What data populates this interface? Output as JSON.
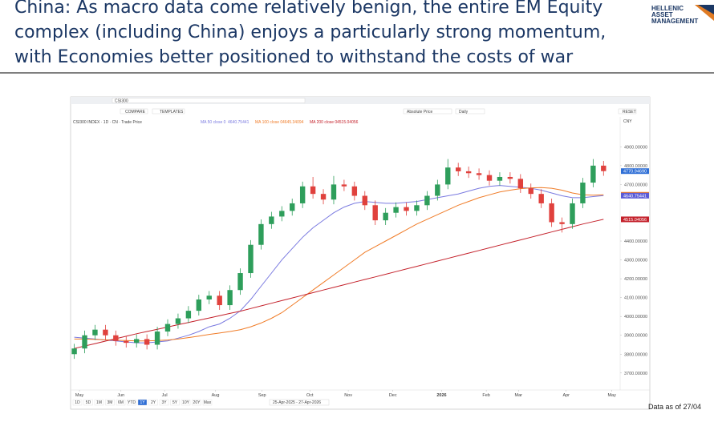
{
  "header": {
    "title_lines": [
      "China: As macro data come relatively benign, the entire EM Equity",
      "complex (including China) enjoys a particularly strong momentum,",
      "with Economies better positioned to withstand the costs of war"
    ],
    "logo": [
      "HELLENIC",
      "ASSET",
      "MANAGEMENT"
    ]
  },
  "toolbar": {
    "ticker": "CSI300",
    "compare": "COMPARE",
    "templates": "TEMPLATES",
    "price_mode": "Absolute Price",
    "frequency": "Daily",
    "reset": "RESET",
    "currency": "CNY",
    "info": "CSI300 INDEX · 1D · CN · Trade Price"
  },
  "ranges": [
    "1D",
    "5D",
    "1M",
    "3M",
    "6M",
    "YTD",
    "1Y",
    "2Y",
    "3Y",
    "5Y",
    "10Y",
    "20Y",
    "Max"
  ],
  "active_range": "1Y",
  "date_range": "25-Apr-2025 - 27-Apr-2026",
  "chart_data": {
    "type": "candlestick",
    "open": [
      3800,
      3830,
      3900,
      3930,
      3900,
      3870,
      3860,
      3880,
      3850,
      3920,
      3960,
      3990,
      4030,
      4090,
      4110,
      4060,
      4140,
      4230,
      4380,
      4490,
      4530,
      4560,
      4600,
      4690,
      4650,
      4620,
      4700,
      4690,
      4640,
      4590,
      4510,
      4550,
      4580,
      4560,
      4590,
      4640,
      4700,
      4790,
      4770,
      4760,
      4750,
      4720,
      4740,
      4730,
      4680,
      4650,
      4600,
      4500,
      4490,
      4600,
      4710,
      4800
    ],
    "high": [
      3855,
      3925,
      3955,
      3955,
      3925,
      3895,
      3905,
      3905,
      3945,
      3985,
      4015,
      4055,
      4115,
      4135,
      4135,
      4165,
      4255,
      4405,
      4515,
      4555,
      4585,
      4625,
      4715,
      4740,
      4675,
      4745,
      4725,
      4715,
      4665,
      4615,
      4575,
      4605,
      4605,
      4615,
      4665,
      4725,
      4835,
      4815,
      4795,
      4785,
      4775,
      4765,
      4765,
      4755,
      4705,
      4675,
      4625,
      4525,
      4625,
      4735,
      4835,
      4825
    ],
    "low": [
      3775,
      3805,
      3875,
      3875,
      3845,
      3835,
      3835,
      3825,
      3825,
      3895,
      3935,
      3965,
      4005,
      4065,
      4035,
      4035,
      4115,
      4205,
      4355,
      4465,
      4505,
      4535,
      4575,
      4625,
      4595,
      4595,
      4665,
      4615,
      4565,
      4485,
      4485,
      4525,
      4535,
      4535,
      4565,
      4615,
      4675,
      4745,
      4735,
      4725,
      4695,
      4695,
      4705,
      4655,
      4625,
      4575,
      4475,
      4445,
      4465,
      4575,
      4685,
      4746
    ],
    "close": [
      3830,
      3900,
      3930,
      3900,
      3870,
      3860,
      3880,
      3850,
      3920,
      3960,
      3990,
      4030,
      4090,
      4110,
      4060,
      4140,
      4230,
      4380,
      4490,
      4530,
      4560,
      4600,
      4690,
      4650,
      4620,
      4700,
      4690,
      4640,
      4590,
      4510,
      4550,
      4580,
      4560,
      4590,
      4640,
      4700,
      4790,
      4770,
      4760,
      4750,
      4720,
      4740,
      4730,
      4680,
      4650,
      4600,
      4500,
      4490,
      4600,
      4710,
      4800,
      4770.9469
    ],
    "up_color": "#2e9e5b",
    "down_color": "#e0413d",
    "series": [
      {
        "name": "MA 50 close 0",
        "color": "#7a7ae0",
        "values": [
          3890,
          3885,
          3880,
          3875,
          3870,
          3865,
          3860,
          3860,
          3865,
          3870,
          3885,
          3900,
          3920,
          3945,
          3960,
          3990,
          4030,
          4090,
          4160,
          4230,
          4300,
          4360,
          4420,
          4470,
          4510,
          4550,
          4580,
          4600,
          4610,
          4605,
          4600,
          4600,
          4605,
          4610,
          4620,
          4630,
          4640,
          4650,
          4665,
          4680,
          4690,
          4695,
          4690,
          4685,
          4680,
          4670,
          4655,
          4640,
          4630,
          4630,
          4636,
          4640.75441
        ]
      },
      {
        "name": "MA 100 close 0",
        "color": "#f07c28",
        "values": [
          3880,
          3880,
          3878,
          3876,
          3874,
          3872,
          3870,
          3870,
          3872,
          3875,
          3880,
          3888,
          3896,
          3905,
          3912,
          3920,
          3930,
          3945,
          3965,
          3990,
          4020,
          4060,
          4100,
          4140,
          4180,
          4220,
          4260,
          4300,
          4340,
          4370,
          4400,
          4430,
          4460,
          4490,
          4515,
          4540,
          4565,
          4590,
          4610,
          4630,
          4645,
          4660,
          4670,
          4678,
          4682,
          4684,
          4680,
          4670,
          4655,
          4645,
          4643,
          4645.34094
        ]
      },
      {
        "name": "MA 200 close 0",
        "color": "#c4212b",
        "values": [
          3830,
          3843,
          3856,
          3869,
          3882,
          3895,
          3908,
          3920,
          3932,
          3944,
          3956,
          3968,
          3980,
          3992,
          4004,
          4016,
          4028,
          4042,
          4056,
          4070,
          4084,
          4098,
          4112,
          4126,
          4140,
          4154,
          4168,
          4182,
          4196,
          4210,
          4224,
          4238,
          4252,
          4266,
          4280,
          4294,
          4308,
          4322,
          4336,
          4350,
          4364,
          4378,
          4392,
          4406,
          4420,
          4434,
          4448,
          4462,
          4476,
          4490,
          4503,
          4515.04056
        ]
      }
    ],
    "price_tags": [
      {
        "value": 4770.9469,
        "label": "4770.94690",
        "color": "#2f6fd6"
      },
      {
        "value": 4645.34094,
        "label": "4645.34094",
        "color": "#f07c28"
      },
      {
        "value": 4640.75441,
        "label": "4640.75441",
        "color": "#5a5ad6"
      },
      {
        "value": 4515.04056,
        "label": "4515.04056",
        "color": "#c4212b"
      }
    ],
    "xlim": [
      -0.2,
      52.6
    ],
    "xticks": [
      {
        "value": 0.5,
        "label": "May"
      },
      {
        "value": 4.5,
        "label": "Jun"
      },
      {
        "value": 8.7,
        "label": "Jul"
      },
      {
        "value": 13.6,
        "label": "Aug"
      },
      {
        "value": 18.1,
        "label": "Sep"
      },
      {
        "value": 22.7,
        "label": "Oct"
      },
      {
        "value": 26.4,
        "label": "Nov"
      },
      {
        "value": 30.7,
        "label": "Dec"
      },
      {
        "value": 35.4,
        "label": "2026"
      },
      {
        "value": 39.7,
        "label": "Feb"
      },
      {
        "value": 42.8,
        "label": "Mar"
      },
      {
        "value": 47.4,
        "label": "Apr"
      },
      {
        "value": 51.8,
        "label": "May"
      }
    ],
    "ylim": [
      3610,
      5050
    ],
    "yticks": [
      {
        "value": 3700,
        "label": "3700.00000"
      },
      {
        "value": 3800,
        "label": "3800.00000"
      },
      {
        "value": 3900,
        "label": "3900.00000"
      },
      {
        "value": 4000,
        "label": "4000.00000"
      },
      {
        "value": 4100,
        "label": "4100.00000"
      },
      {
        "value": 4200,
        "label": "4200.00000"
      },
      {
        "value": 4300,
        "label": "4300.00000"
      },
      {
        "value": 4400,
        "label": "4400.00000"
      },
      {
        "value": 4700,
        "label": "4700.00000"
      },
      {
        "value": 4800,
        "label": "4800.00000"
      },
      {
        "value": 4900,
        "label": "4900.00000"
      }
    ]
  },
  "footer": "Data as of 27/04"
}
